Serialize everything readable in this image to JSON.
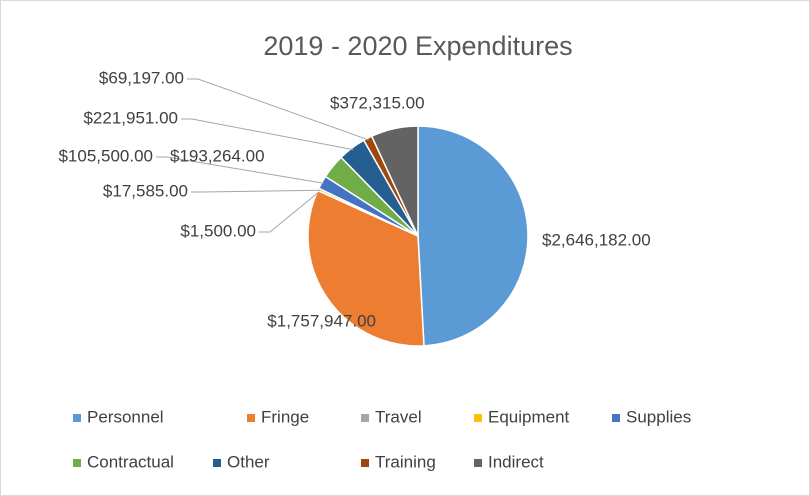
{
  "chart_data": {
    "type": "pie",
    "title": "2019 - 2020 Expenditures",
    "categories": [
      "Personnel",
      "Fringe",
      "Travel",
      "Equipment",
      "Supplies",
      "Contractual",
      "Other",
      "Training",
      "Indirect"
    ],
    "values": [
      2646182,
      1757947,
      1500,
      17585,
      105500,
      193264,
      221951,
      69197,
      372315
    ],
    "value_labels": [
      "$2,646,182.00",
      "$1,757,947.00",
      "$1,500.00",
      "$17,585.00",
      "$105,500.00",
      "$193,264.00",
      "$221,951.00",
      "$69,197.00",
      "$372,315.00"
    ],
    "colors": [
      "#5b9bd5",
      "#ed7d31",
      "#a5a5a5",
      "#ffc000",
      "#4472c4",
      "#70ad47",
      "#255e91",
      "#9e480e",
      "#636363"
    ],
    "legend": "bottom"
  }
}
